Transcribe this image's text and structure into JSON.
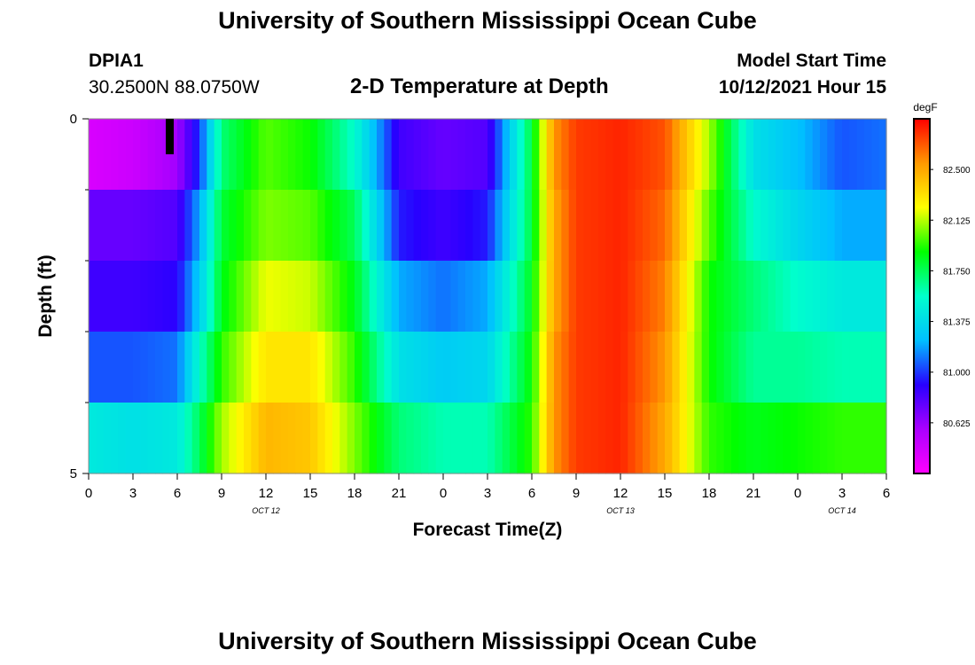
{
  "header": {
    "title": "University of Southern Mississippi Ocean Cube",
    "station_id": "DPIA1",
    "station_location": "30.2500N  88.0750W",
    "model_start_label": "Model Start Time",
    "model_start_value": "10/12/2021 Hour 15",
    "footer_title": "University of Southern Mississippi Ocean Cube"
  },
  "chart_data": {
    "type": "heatmap",
    "title": "2-D Temperature at Depth",
    "xlabel": "Forecast Time(Z)",
    "ylabel": "Depth (ft)",
    "x_tick_labels": [
      "0",
      "3",
      "6",
      "9",
      "12",
      "15",
      "18",
      "21",
      "0",
      "3",
      "6",
      "9",
      "12",
      "15",
      "18",
      "21",
      "0",
      "3",
      "6"
    ],
    "x_date_labels": [
      {
        "label": "OCT 12",
        "hour": 12
      },
      {
        "label": "OCT 13",
        "hour": 36
      },
      {
        "label": "OCT 14",
        "hour": 51
      }
    ],
    "x_range_hours": [
      0,
      54
    ],
    "y_tick_labels": [
      "0",
      "5"
    ],
    "y_range": [
      0,
      5
    ],
    "depth_levels_ft": [
      0.5,
      1.5,
      2.5,
      3.5,
      4.5
    ],
    "colorbar": {
      "unit": "degF",
      "min": 80.25,
      "max": 82.875,
      "tick_values": [
        80.625,
        81.0,
        81.375,
        81.75,
        82.125,
        82.5
      ],
      "tick_labels": [
        "80.625",
        "81.000",
        "81.375",
        "81.750",
        "82.125",
        "82.500"
      ],
      "colors": [
        "#ff00ff",
        "#aa00ff",
        "#2800ff",
        "#00c0ff",
        "#00ffcc",
        "#00ff00",
        "#ffff00",
        "#ff9900",
        "#ff0000"
      ]
    },
    "hours": [
      0,
      3,
      6,
      7.5,
      9,
      12,
      15,
      18,
      21,
      24,
      27,
      30,
      31.5,
      33,
      36,
      39,
      42,
      45,
      48,
      51,
      54
    ],
    "values": [
      [
        80.4,
        80.45,
        80.6,
        81.0,
        81.7,
        82.0,
        81.9,
        81.55,
        80.85,
        80.75,
        80.8,
        81.8,
        82.55,
        82.75,
        82.8,
        82.7,
        82.1,
        81.4,
        81.25,
        81.05,
        81.1
      ],
      [
        80.75,
        80.75,
        80.8,
        81.2,
        81.8,
        82.05,
        82.0,
        81.75,
        80.95,
        80.85,
        80.95,
        81.8,
        82.5,
        82.75,
        82.8,
        82.65,
        82.0,
        81.55,
        81.35,
        81.2,
        81.2
      ],
      [
        80.85,
        80.85,
        80.9,
        81.3,
        81.85,
        82.2,
        82.15,
        81.85,
        81.2,
        81.1,
        81.2,
        81.85,
        82.5,
        82.75,
        82.8,
        82.6,
        81.9,
        81.7,
        81.55,
        81.45,
        81.45
      ],
      [
        81.05,
        81.05,
        81.1,
        81.55,
        81.95,
        82.3,
        82.3,
        81.95,
        81.4,
        81.3,
        81.35,
        81.9,
        82.55,
        82.75,
        82.8,
        82.55,
        81.9,
        81.65,
        81.65,
        81.6,
        81.6
      ],
      [
        81.45,
        81.4,
        81.45,
        81.75,
        82.1,
        82.45,
        82.4,
        82.05,
        81.7,
        81.6,
        81.6,
        81.95,
        82.55,
        82.75,
        82.8,
        82.5,
        81.95,
        81.85,
        81.9,
        81.95,
        81.95
      ]
    ]
  }
}
